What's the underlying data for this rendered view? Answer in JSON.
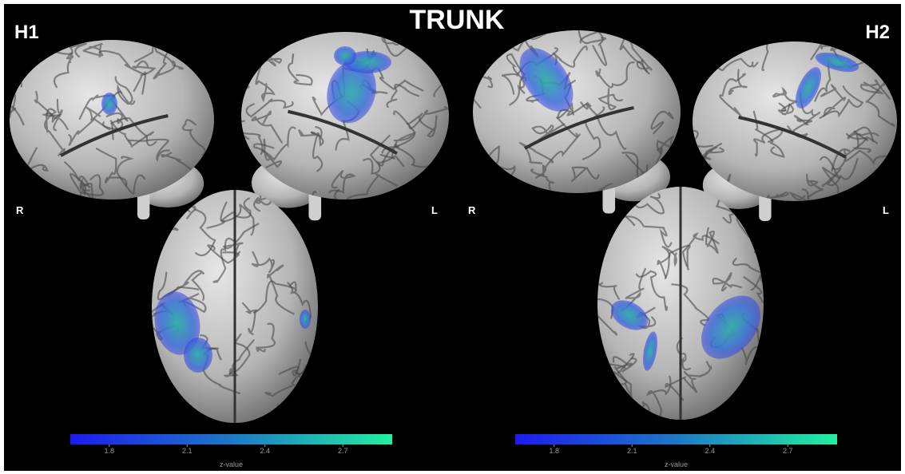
{
  "title": "TRUNK",
  "panels": [
    {
      "label": "H1",
      "left_label": "R",
      "right_label": "L",
      "colorbar": {
        "lim": [
          1.65,
          2.89
        ],
        "ticks": [
          1.8,
          2.1,
          2.4,
          2.7
        ],
        "label": "z-value"
      }
    },
    {
      "label": "H2",
      "left_label": "R",
      "right_label": "L",
      "colorbar": {
        "lim": [
          1.65,
          2.89
        ],
        "ticks": [
          1.8,
          2.1,
          2.4,
          2.7
        ],
        "label": "z-value"
      }
    }
  ]
}
